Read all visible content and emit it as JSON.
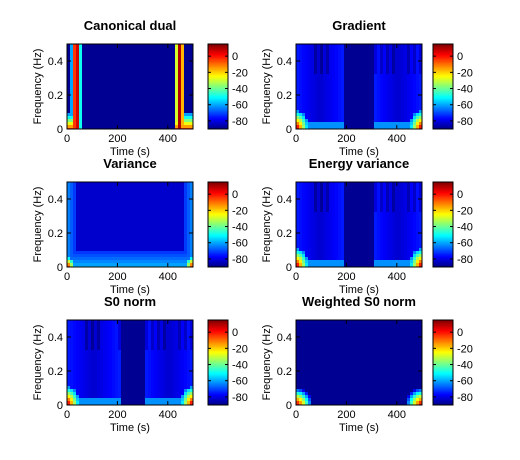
{
  "chart_data": [
    {
      "type": "heatmap",
      "title": "Canonical dual",
      "xlabel": "Time (s)",
      "ylabel": "Frequency (Hz)",
      "xlim": [
        0,
        500
      ],
      "ylim": [
        0,
        0.5
      ],
      "xticks": [
        0,
        200,
        400
      ],
      "yticks": [
        0,
        0.2,
        0.4
      ],
      "colorbar": {
        "range": [
          -90,
          15
        ],
        "ticks": [
          0,
          -20,
          -40,
          -60,
          -80
        ]
      },
      "pattern": "canonical"
    },
    {
      "type": "heatmap",
      "title": "Gradient",
      "xlabel": "Time (s)",
      "ylabel": "Frequency (Hz)",
      "xlim": [
        0,
        500
      ],
      "ylim": [
        0,
        0.5
      ],
      "xticks": [
        0,
        200,
        400
      ],
      "yticks": [
        0,
        0.2,
        0.4
      ],
      "colorbar": {
        "range": [
          -90,
          15
        ],
        "ticks": [
          0,
          -20,
          -40,
          -60,
          -80
        ]
      },
      "pattern": "gradient"
    },
    {
      "type": "heatmap",
      "title": "Variance",
      "xlabel": "Time (s)",
      "ylabel": "Frequency (Hz)",
      "xlim": [
        0,
        500
      ],
      "ylim": [
        0,
        0.5
      ],
      "xticks": [
        0,
        200,
        400
      ],
      "yticks": [
        0,
        0.2,
        0.4
      ],
      "colorbar": {
        "range": [
          -90,
          15
        ],
        "ticks": [
          0,
          -20,
          -40,
          -60,
          -80
        ]
      },
      "pattern": "variance"
    },
    {
      "type": "heatmap",
      "title": "Energy variance",
      "xlabel": "Time (s)",
      "ylabel": "Frequency (Hz)",
      "xlim": [
        0,
        500
      ],
      "ylim": [
        0,
        0.5
      ],
      "xticks": [
        0,
        200,
        400
      ],
      "yticks": [
        0,
        0.2,
        0.4
      ],
      "colorbar": {
        "range": [
          -90,
          15
        ],
        "ticks": [
          0,
          -20,
          -40,
          -60,
          -80
        ]
      },
      "pattern": "gradient"
    },
    {
      "type": "heatmap",
      "title": "S0 norm",
      "xlabel": "Time (s)",
      "ylabel": "Frequency (Hz)",
      "xlim": [
        0,
        500
      ],
      "ylim": [
        0,
        0.5
      ],
      "xticks": [
        0,
        200,
        400
      ],
      "yticks": [
        0,
        0.2,
        0.4
      ],
      "colorbar": {
        "range": [
          -90,
          15
        ],
        "ticks": [
          0,
          -20,
          -40,
          -60,
          -80
        ]
      },
      "pattern": "s0"
    },
    {
      "type": "heatmap",
      "title": "Weighted S0 norm",
      "xlabel": "Time (s)",
      "ylabel": "Frequency (Hz)",
      "xlim": [
        0,
        500
      ],
      "ylim": [
        0,
        0.5
      ],
      "xticks": [
        0,
        200,
        400
      ],
      "yticks": [
        0,
        0.2,
        0.4
      ],
      "colorbar": {
        "range": [
          -90,
          15
        ],
        "ticks": [
          0,
          -20,
          -40,
          -60,
          -80
        ]
      },
      "pattern": "weighted"
    }
  ]
}
